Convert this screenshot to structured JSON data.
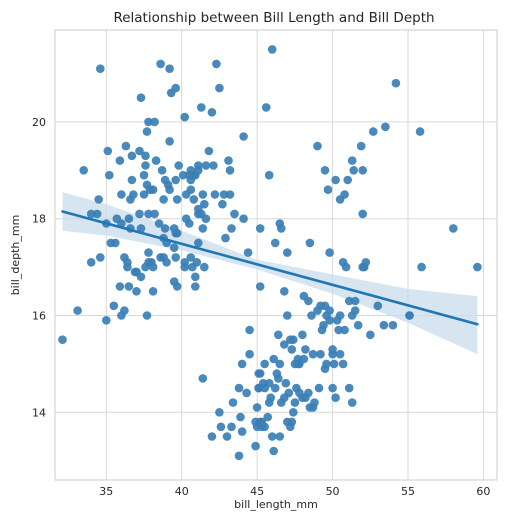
{
  "chart_data": {
    "type": "scatter",
    "title": "Relationship between Bill Length and Bill Depth",
    "xlabel": "bill_length_mm",
    "ylabel": "bill_depth_mm",
    "xlim": [
      31.6,
      60.9
    ],
    "ylim": [
      12.6,
      21.9
    ],
    "xticks": [
      35,
      40,
      45,
      50,
      55,
      60
    ],
    "yticks": [
      14,
      16,
      18,
      20
    ],
    "grid": true,
    "colors": {
      "points": "#3a7fb5",
      "regression": "#1f77b4",
      "band": "#c9dcec",
      "grid": "#d9d9d9",
      "frame": "#cccccc"
    },
    "regression": {
      "x": [
        32.1,
        59.6
      ],
      "y": [
        18.15,
        15.82
      ]
    },
    "confidence_band": {
      "x": [
        32.1,
        35,
        40,
        45,
        50,
        55,
        59.6
      ],
      "lower": [
        17.75,
        17.65,
        17.35,
        16.95,
        16.45,
        15.85,
        15.2
      ],
      "upper": [
        18.55,
        18.3,
        17.75,
        17.15,
        16.85,
        16.55,
        16.4
      ]
    },
    "points": [
      [
        32.1,
        15.5
      ],
      [
        33.1,
        16.1
      ],
      [
        33.5,
        19.0
      ],
      [
        34.0,
        17.1
      ],
      [
        34.0,
        18.1
      ],
      [
        34.4,
        18.1
      ],
      [
        34.5,
        18.4
      ],
      [
        34.6,
        21.1
      ],
      [
        34.6,
        17.2
      ],
      [
        35.0,
        15.9
      ],
      [
        35.0,
        17.9
      ],
      [
        35.1,
        19.4
      ],
      [
        35.2,
        18.9
      ],
      [
        35.3,
        17.5
      ],
      [
        35.5,
        16.2
      ],
      [
        35.6,
        17.5
      ],
      [
        35.7,
        18.0
      ],
      [
        35.9,
        16.6
      ],
      [
        35.9,
        19.2
      ],
      [
        36.0,
        16.0
      ],
      [
        36.0,
        17.9
      ],
      [
        36.0,
        18.5
      ],
      [
        36.2,
        16.1
      ],
      [
        36.2,
        17.2
      ],
      [
        36.3,
        19.5
      ],
      [
        36.4,
        17.0
      ],
      [
        36.4,
        17.1
      ],
      [
        36.5,
        16.6
      ],
      [
        36.5,
        18.0
      ],
      [
        36.6,
        17.8
      ],
      [
        36.6,
        18.4
      ],
      [
        36.7,
        18.8
      ],
      [
        36.7,
        19.3
      ],
      [
        36.8,
        18.5
      ],
      [
        36.9,
        16.9
      ],
      [
        37.0,
        16.5
      ],
      [
        37.0,
        16.9
      ],
      [
        37.2,
        18.1
      ],
      [
        37.2,
        19.4
      ],
      [
        37.3,
        16.8
      ],
      [
        37.3,
        17.8
      ],
      [
        37.3,
        20.5
      ],
      [
        37.5,
        18.5
      ],
      [
        37.5,
        18.9
      ],
      [
        37.6,
        17.0
      ],
      [
        37.6,
        19.1
      ],
      [
        37.6,
        19.3
      ],
      [
        37.7,
        16.0
      ],
      [
        37.7,
        18.7
      ],
      [
        37.7,
        19.8
      ],
      [
        37.8,
        17.1
      ],
      [
        37.8,
        17.3
      ],
      [
        37.8,
        18.1
      ],
      [
        37.8,
        20.0
      ],
      [
        37.9,
        18.6
      ],
      [
        38.0,
        17.1
      ],
      [
        38.1,
        16.5
      ],
      [
        38.1,
        17.0
      ],
      [
        38.1,
        18.6
      ],
      [
        38.2,
        18.1
      ],
      [
        38.2,
        20.0
      ],
      [
        38.3,
        19.2
      ],
      [
        38.5,
        17.9
      ],
      [
        38.6,
        17.2
      ],
      [
        38.6,
        21.2
      ],
      [
        38.7,
        19.0
      ],
      [
        38.8,
        17.2
      ],
      [
        38.8,
        17.6
      ],
      [
        38.8,
        18.4
      ],
      [
        38.9,
        17.8
      ],
      [
        38.9,
        18.8
      ],
      [
        39.0,
        17.1
      ],
      [
        39.0,
        17.5
      ],
      [
        39.1,
        18.7
      ],
      [
        39.2,
        18.6
      ],
      [
        39.2,
        19.6
      ],
      [
        39.2,
        21.1
      ],
      [
        39.3,
        20.6
      ],
      [
        39.5,
        16.7
      ],
      [
        39.5,
        17.4
      ],
      [
        39.5,
        17.8
      ],
      [
        39.6,
        17.2
      ],
      [
        39.6,
        17.7
      ],
      [
        39.6,
        18.8
      ],
      [
        39.6,
        20.7
      ],
      [
        39.7,
        16.6
      ],
      [
        39.7,
        17.7
      ],
      [
        39.7,
        18.4
      ],
      [
        39.8,
        19.1
      ],
      [
        40.1,
        18.9
      ],
      [
        40.2,
        17.0
      ],
      [
        40.2,
        17.1
      ],
      [
        40.2,
        20.1
      ],
      [
        40.3,
        18.0
      ],
      [
        40.3,
        18.5
      ],
      [
        40.5,
        17.9
      ],
      [
        40.5,
        18.9
      ],
      [
        40.6,
        17.2
      ],
      [
        40.6,
        18.6
      ],
      [
        40.6,
        18.8
      ],
      [
        40.6,
        19.0
      ],
      [
        40.7,
        17.0
      ],
      [
        40.8,
        18.4
      ],
      [
        40.8,
        18.9
      ],
      [
        40.9,
        16.6
      ],
      [
        40.9,
        16.8
      ],
      [
        40.9,
        18.9
      ],
      [
        41.0,
        17.1
      ],
      [
        41.1,
        17.5
      ],
      [
        41.1,
        18.1
      ],
      [
        41.1,
        18.2
      ],
      [
        41.1,
        19.0
      ],
      [
        41.1,
        19.1
      ],
      [
        41.3,
        18.1
      ],
      [
        41.3,
        20.3
      ],
      [
        41.4,
        17.8
      ],
      [
        41.4,
        18.5
      ],
      [
        41.5,
        17.0
      ],
      [
        41.5,
        18.3
      ],
      [
        41.6,
        18.0
      ],
      [
        41.6,
        19.1
      ],
      [
        41.8,
        19.4
      ],
      [
        42.0,
        20.2
      ],
      [
        42.1,
        19.1
      ],
      [
        42.2,
        18.5
      ],
      [
        42.3,
        21.2
      ],
      [
        42.5,
        20.7
      ],
      [
        42.7,
        18.3
      ],
      [
        42.8,
        18.5
      ],
      [
        42.9,
        17.6
      ],
      [
        43.1,
        19.2
      ],
      [
        43.2,
        18.5
      ],
      [
        43.2,
        19.0
      ],
      [
        43.3,
        17.8
      ],
      [
        43.5,
        18.1
      ],
      [
        44.1,
        18.0
      ],
      [
        44.1,
        19.7
      ],
      [
        44.4,
        17.3
      ],
      [
        44.5,
        15.7
      ],
      [
        44.9,
        13.3
      ],
      [
        45.1,
        14.5
      ],
      [
        45.2,
        16.6
      ],
      [
        45.2,
        17.8
      ],
      [
        45.3,
        13.7
      ],
      [
        45.4,
        14.6
      ],
      [
        45.5,
        13.7
      ],
      [
        45.5,
        15.0
      ],
      [
        45.6,
        20.3
      ],
      [
        45.8,
        14.6
      ],
      [
        45.8,
        18.9
      ],
      [
        46.0,
        21.5
      ],
      [
        46.1,
        15.1
      ],
      [
        46.2,
        14.5
      ],
      [
        46.2,
        17.5
      ],
      [
        46.4,
        15.6
      ],
      [
        46.5,
        17.9
      ],
      [
        46.6,
        17.8
      ],
      [
        46.8,
        16.5
      ],
      [
        47.0,
        17.3
      ],
      [
        47.2,
        15.5
      ],
      [
        47.5,
        14.2
      ],
      [
        47.7,
        15.0
      ],
      [
        47.8,
        15.0
      ],
      [
        48.1,
        16.4
      ],
      [
        48.4,
        14.4
      ],
      [
        48.5,
        17.5
      ],
      [
        48.7,
        15.2
      ],
      [
        49.0,
        19.5
      ],
      [
        49.2,
        15.2
      ],
      [
        49.5,
        16.2
      ],
      [
        49.5,
        19.0
      ],
      [
        49.7,
        18.6
      ],
      [
        49.8,
        17.3
      ],
      [
        50.0,
        15.2
      ],
      [
        50.2,
        18.8
      ],
      [
        50.4,
        15.7
      ],
      [
        50.5,
        15.2
      ],
      [
        50.5,
        18.4
      ],
      [
        50.7,
        15.0
      ],
      [
        50.8,
        18.5
      ],
      [
        51.0,
        18.8
      ],
      [
        51.1,
        16.3
      ],
      [
        51.3,
        19.2
      ],
      [
        51.4,
        19.0
      ],
      [
        51.5,
        16.3
      ],
      [
        51.9,
        19.5
      ],
      [
        52.0,
        18.1
      ],
      [
        52.0,
        19.0
      ],
      [
        52.2,
        17.1
      ],
      [
        52.5,
        15.6
      ],
      [
        52.7,
        19.8
      ],
      [
        53.4,
        15.8
      ],
      [
        53.5,
        19.9
      ],
      [
        54.2,
        20.8
      ],
      [
        55.1,
        16.0
      ],
      [
        55.8,
        19.8
      ],
      [
        55.9,
        17.0
      ],
      [
        58.0,
        17.8
      ],
      [
        59.6,
        17.0
      ],
      [
        42.0,
        13.5
      ],
      [
        42.5,
        14.0
      ],
      [
        43.0,
        13.5
      ],
      [
        43.3,
        13.7
      ],
      [
        43.4,
        14.2
      ],
      [
        43.8,
        14.5
      ],
      [
        43.9,
        13.9
      ],
      [
        44.0,
        13.6
      ],
      [
        44.3,
        14.4
      ],
      [
        45.0,
        13.7
      ],
      [
        45.0,
        14.1
      ],
      [
        45.1,
        14.5
      ],
      [
        45.2,
        13.8
      ],
      [
        45.5,
        14.5
      ],
      [
        45.7,
        13.9
      ],
      [
        45.9,
        14.3
      ],
      [
        46.0,
        13.5
      ],
      [
        46.1,
        13.2
      ],
      [
        46.3,
        14.8
      ],
      [
        46.5,
        13.5
      ],
      [
        46.6,
        14.2
      ],
      [
        46.8,
        14.3
      ],
      [
        47.0,
        13.8
      ],
      [
        47.1,
        14.4
      ],
      [
        47.2,
        13.7
      ],
      [
        47.4,
        14.0
      ],
      [
        47.5,
        15.0
      ],
      [
        47.6,
        14.5
      ],
      [
        47.8,
        14.4
      ],
      [
        48.0,
        14.3
      ],
      [
        48.2,
        14.3
      ],
      [
        48.5,
        14.1
      ],
      [
        48.7,
        14.1
      ],
      [
        48.8,
        14.2
      ],
      [
        49.1,
        14.5
      ],
      [
        49.3,
        15.7
      ],
      [
        49.4,
        15.8
      ],
      [
        49.6,
        15.0
      ],
      [
        49.8,
        16.1
      ],
      [
        50.0,
        15.3
      ],
      [
        50.1,
        15.0
      ],
      [
        50.3,
        15.9
      ],
      [
        50.5,
        16.0
      ],
      [
        50.8,
        15.7
      ],
      [
        51.5,
        16.1
      ],
      [
        46.5,
        15.0
      ],
      [
        46.9,
        14.6
      ],
      [
        47.3,
        15.3
      ],
      [
        47.7,
        15.1
      ],
      [
        48.4,
        16.3
      ],
      [
        48.6,
        16.0
      ],
      [
        49.0,
        16.1
      ],
      [
        49.2,
        16.2
      ],
      [
        45.3,
        13.8
      ],
      [
        44.5,
        15.2
      ],
      [
        45.1,
        14.8
      ],
      [
        46.8,
        15.4
      ],
      [
        47.0,
        16.0
      ],
      [
        47.4,
        15.5
      ],
      [
        48.0,
        15.6
      ],
      [
        48.2,
        15.3
      ],
      [
        49.6,
        16.0
      ],
      [
        50.7,
        17.1
      ],
      [
        50.9,
        17.0
      ],
      [
        51.3,
        16.0
      ],
      [
        51.7,
        15.8
      ],
      [
        52.0,
        17.0
      ],
      [
        54.0,
        15.8
      ],
      [
        53.0,
        16.2
      ],
      [
        55.1,
        16.0
      ],
      [
        49.8,
        15.9
      ],
      [
        50.2,
        14.3
      ],
      [
        51.1,
        14.5
      ],
      [
        52.1,
        17.0
      ],
      [
        51.3,
        14.2
      ],
      [
        43.8,
        13.1
      ],
      [
        44.9,
        13.8
      ],
      [
        45.2,
        14.8
      ],
      [
        45.8,
        14.2
      ],
      [
        46.4,
        14.7
      ],
      [
        47.3,
        13.8
      ],
      [
        48.1,
        15.1
      ],
      [
        49.5,
        14.9
      ],
      [
        50.0,
        14.5
      ],
      [
        41.4,
        14.7
      ],
      [
        42.6,
        13.7
      ],
      [
        44.0,
        15.0
      ]
    ]
  }
}
